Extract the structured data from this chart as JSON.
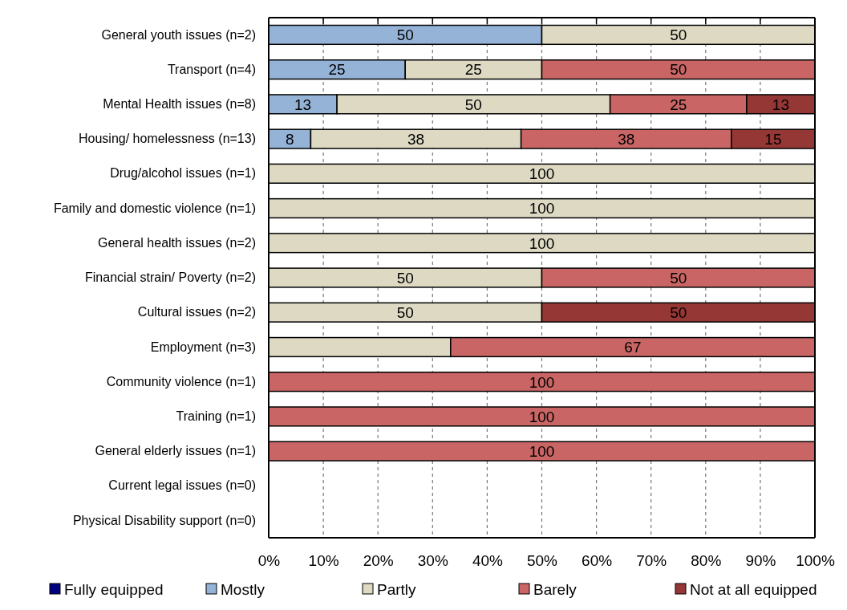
{
  "chart_data": {
    "type": "bar",
    "orientation": "horizontal",
    "stacked": true,
    "categories": [
      "General youth issues (n=2)",
      "Transport (n=4)",
      "Mental Health issues (n=8)",
      "Housing/ homelessness (n=13)",
      "Drug/alcohol issues (n=1)",
      "Family and domestic violence (n=1)",
      "General health issues (n=2)",
      "Financial strain/ Poverty (n=2)",
      "Cultural issues (n=2)",
      "Employment (n=3)",
      "Community violence (n=1)",
      "Training (n=1)",
      "General elderly issues (n=1)",
      "Current legal issues (n=0)",
      "Physical Disability support (n=0)"
    ],
    "series": [
      {
        "name": "Fully equipped",
        "color": "#000080",
        "values": [
          0,
          0,
          0,
          0,
          0,
          0,
          0,
          0,
          0,
          0,
          0,
          0,
          0,
          0,
          0
        ],
        "value_labels": [
          null,
          null,
          null,
          null,
          null,
          null,
          null,
          null,
          null,
          null,
          null,
          null,
          null,
          null,
          null
        ]
      },
      {
        "name": "Mostly",
        "color": "#95b3d7",
        "values": [
          50,
          25,
          12.5,
          7.7,
          0,
          0,
          0,
          0,
          0,
          0,
          0,
          0,
          0,
          0,
          0
        ],
        "value_labels": [
          "50",
          "25",
          "13",
          "8",
          null,
          null,
          null,
          null,
          null,
          null,
          null,
          null,
          null,
          null,
          null
        ]
      },
      {
        "name": "Partly",
        "color": "#ddd9c3",
        "values": [
          50,
          25,
          50,
          38.5,
          100,
          100,
          100,
          50,
          50,
          33.3,
          0,
          0,
          0,
          0,
          0
        ],
        "value_labels": [
          "50",
          "25",
          "50",
          "38",
          "100",
          "100",
          "100",
          "50",
          "50",
          null,
          null,
          null,
          null,
          null,
          null
        ]
      },
      {
        "name": "Barely",
        "color": "#c96565",
        "values": [
          0,
          50,
          25,
          38.5,
          0,
          0,
          0,
          50,
          0,
          66.7,
          100,
          100,
          100,
          0,
          0
        ],
        "value_labels": [
          null,
          "50",
          "25",
          "38",
          null,
          null,
          null,
          "50",
          null,
          "67",
          "100",
          "100",
          "100",
          null,
          null
        ]
      },
      {
        "name": "Not at all equipped",
        "color": "#953735",
        "values": [
          0,
          0,
          12.5,
          15.3,
          0,
          0,
          0,
          0,
          50,
          0,
          0,
          0,
          0,
          0,
          0
        ],
        "value_labels": [
          null,
          null,
          "13",
          "15",
          null,
          null,
          null,
          null,
          "50",
          null,
          null,
          null,
          null,
          null,
          null
        ]
      }
    ],
    "xlim": [
      0,
      100
    ],
    "xticks": [
      {
        "value": 0,
        "label": "0%"
      },
      {
        "value": 10,
        "label": "10%"
      },
      {
        "value": 20,
        "label": "20%"
      },
      {
        "value": 30,
        "label": "30%"
      },
      {
        "value": 40,
        "label": "40%"
      },
      {
        "value": 50,
        "label": "50%"
      },
      {
        "value": 60,
        "label": "60%"
      },
      {
        "value": 70,
        "label": "70%"
      },
      {
        "value": 80,
        "label": "80%"
      },
      {
        "value": 90,
        "label": "90%"
      },
      {
        "value": 100,
        "label": "100%"
      }
    ],
    "grid": "x",
    "line_style": "dashed",
    "legend": "bottom"
  }
}
